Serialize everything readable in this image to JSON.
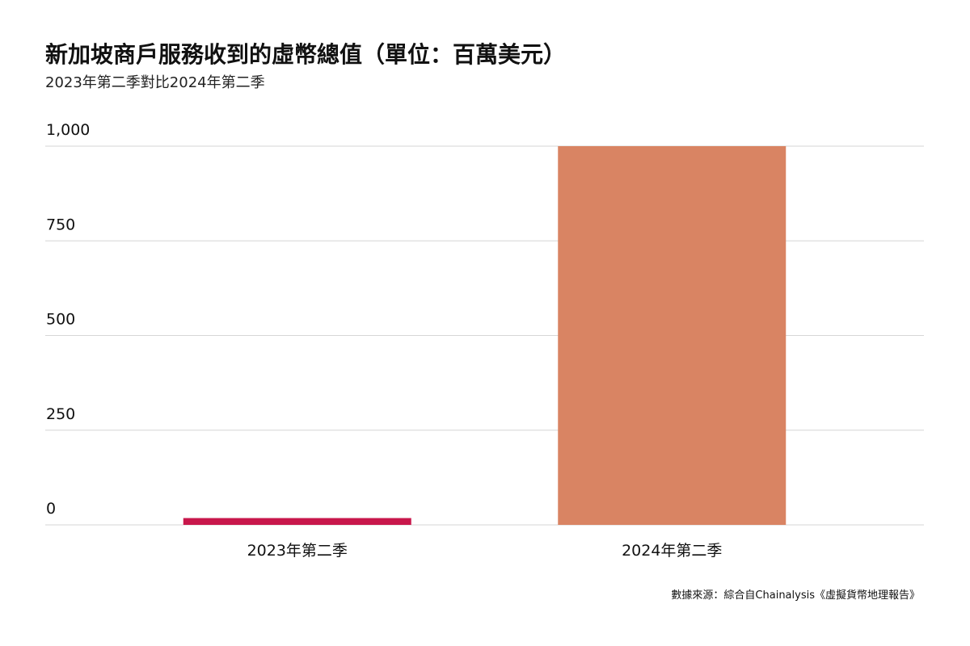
{
  "chart_data": {
    "type": "bar",
    "title": "新加坡商戶服務收到的虛幣總值（單位：百萬美元）",
    "subtitle": "2023年第二季對比2024年第二季",
    "categories": [
      "2023年第二季",
      "2024年第二季"
    ],
    "values": [
      18,
      1000
    ],
    "ylim": [
      0,
      1000
    ],
    "yticks": [
      0,
      250,
      500,
      750,
      1000
    ],
    "ytick_labels": [
      "0",
      "250",
      "500",
      "750",
      "1,000"
    ],
    "xlabel": "",
    "ylabel": "",
    "grid": true,
    "legend": "none",
    "colors": [
      "#c8174b",
      "#d98463"
    ],
    "gridline_color": "#d6d6d6",
    "source": "數據來源：綜合自Chainalysis《虛擬貨幣地理報告》"
  }
}
